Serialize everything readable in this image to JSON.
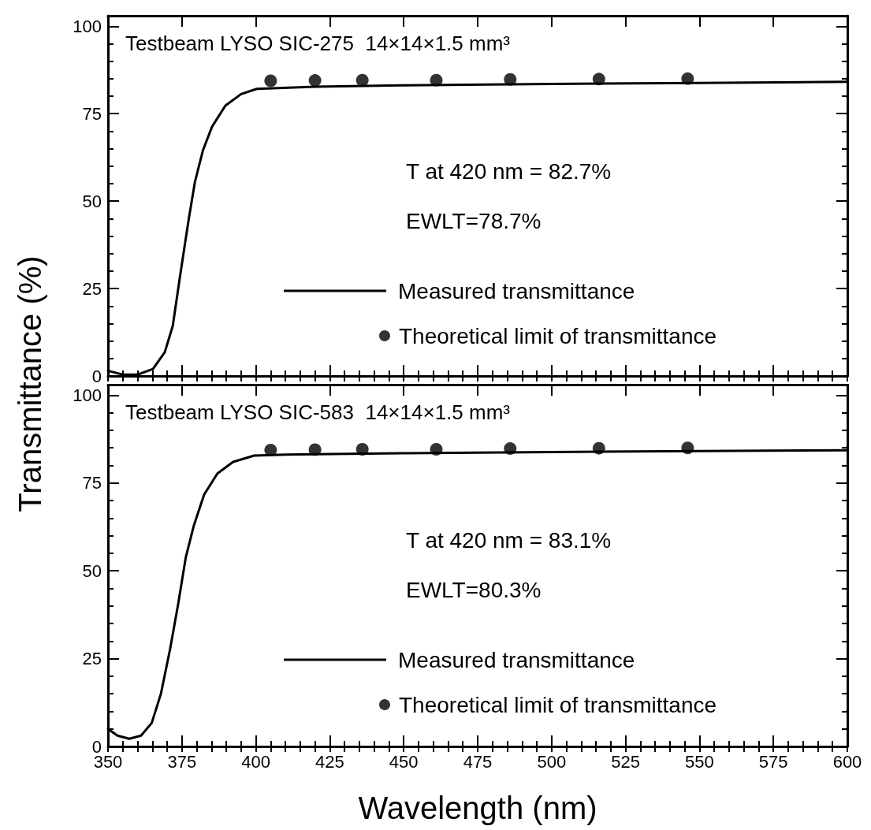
{
  "chart_data": [
    {
      "type": "line",
      "title": "Testbeam LYSO SIC-275  14×14×1.5 mm³",
      "ylabel": "Transmittance (%)",
      "xlim": [
        350,
        600
      ],
      "xticks": [
        350,
        375,
        400,
        425,
        450,
        475,
        500,
        525,
        550,
        575,
        600
      ],
      "ylim": [
        0,
        103
      ],
      "yticks": [
        0,
        25,
        50,
        75,
        100
      ],
      "tick_labels": "y",
      "annotations": [
        "T at 420 nm = 82.7%",
        "EWLT=78.7%"
      ],
      "legend": "bottom right",
      "grid": false,
      "series": [
        {
          "name": "Measured transmittance",
          "color": "#000000",
          "marker": "none",
          "line_style": "solid",
          "x": [
            350,
            355,
            360,
            365.2,
            369.2,
            371.9,
            374.5,
            377.2,
            379.4,
            382.1,
            385.2,
            389.7,
            395,
            400.3,
            420,
            450,
            500,
            550,
            600
          ],
          "values": [
            1.5,
            0.4,
            0.4,
            2,
            6.8,
            14.3,
            29.3,
            44.3,
            55.5,
            64.5,
            71.3,
            77.3,
            80.6,
            82.1,
            82.7,
            83.1,
            83.5,
            83.8,
            84.1
          ]
        },
        {
          "name": "Theoretical limit of transmittance",
          "type": "scatter",
          "color": "#000000",
          "marker": "circle",
          "x": [
            405,
            420,
            436,
            461,
            486,
            516,
            546
          ],
          "values": [
            84.4,
            84.5,
            84.6,
            84.6,
            84.8,
            84.9,
            85.0
          ]
        }
      ]
    },
    {
      "type": "line",
      "title": "Testbeam LYSO SIC-583  14×14×1.5 mm³",
      "xlabel": "Wavelength (nm)",
      "xlim": [
        350,
        600
      ],
      "xticks": [
        350,
        375,
        400,
        425,
        450,
        475,
        500,
        525,
        550,
        575,
        600
      ],
      "ylim": [
        0,
        103
      ],
      "yticks": [
        0,
        25,
        50,
        75,
        100
      ],
      "annotations": [
        "T at 420 nm = 83.1%",
        "EWLT=80.3%"
      ],
      "legend": "bottom right",
      "grid": false,
      "series": [
        {
          "name": "Measured transmittance",
          "color": "#000000",
          "marker": "none",
          "line_style": "solid",
          "x": [
            350,
            353.2,
            357.2,
            361.2,
            364.8,
            367.9,
            371,
            373.7,
            376.3,
            379,
            382.5,
            387,
            392.3,
            399.4,
            410,
            420,
            450,
            500,
            550,
            600
          ],
          "values": [
            5,
            3.1,
            2.2,
            3.1,
            6.7,
            15,
            27.7,
            40.4,
            53.8,
            62.8,
            71.7,
            77.7,
            81,
            82.8,
            83.1,
            83.2,
            83.5,
            83.8,
            84.1,
            84.3
          ]
        },
        {
          "name": "Theoretical limit of transmittance",
          "type": "scatter",
          "color": "#000000",
          "marker": "circle",
          "x": [
            405,
            420,
            436,
            461,
            486,
            516,
            546
          ],
          "values": [
            84.4,
            84.5,
            84.6,
            84.6,
            84.8,
            84.9,
            85.0
          ]
        }
      ]
    }
  ]
}
